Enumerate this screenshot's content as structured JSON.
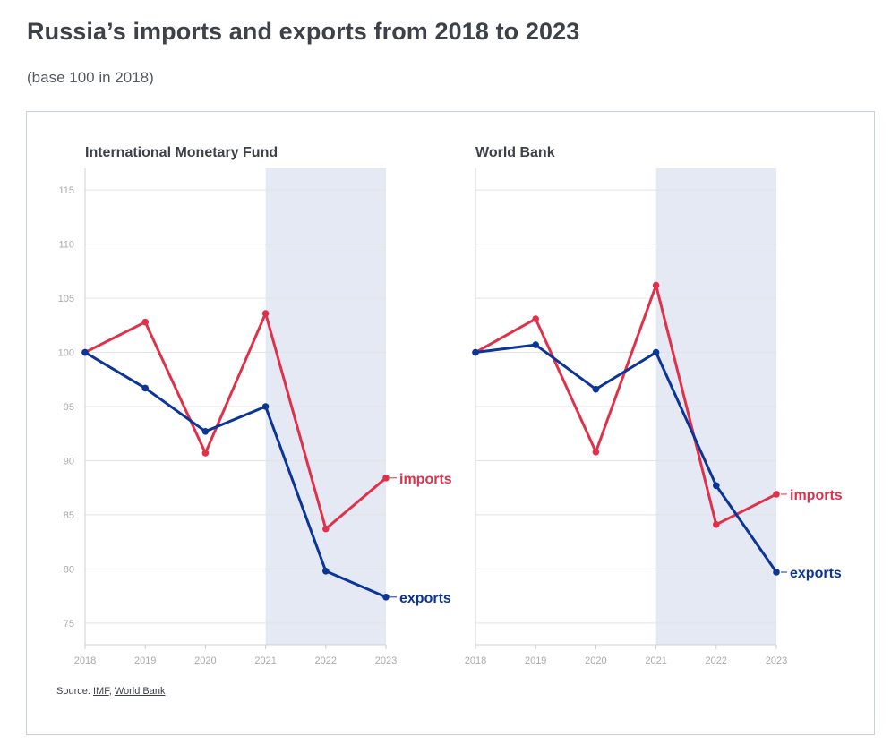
{
  "title": "Russia’s imports and exports from 2018 to 2023",
  "subtitle": "(base 100 in 2018)",
  "source": {
    "prefix": "Source: ",
    "links": [
      "IMF",
      "World Bank"
    ],
    "separator": ", "
  },
  "colors": {
    "imports": "#e0314b",
    "exports": "#0b3596",
    "shade": "#e4e9f4",
    "grid": "#e3e3e3",
    "tick": "#aaaaaa",
    "text": "#3d4148"
  },
  "chart_data": [
    {
      "type": "line",
      "title": "International Monetary Fund",
      "x": [
        "2018",
        "2019",
        "2020",
        "2021",
        "2022",
        "2023"
      ],
      "yticks": [
        75,
        80,
        85,
        90,
        95,
        100,
        105,
        110,
        115
      ],
      "ylim": [
        73,
        117
      ],
      "shaded_range": [
        "2021",
        "2023"
      ],
      "grid": true,
      "series": [
        {
          "name": "imports",
          "values": [
            100,
            102.8,
            90.7,
            103.6,
            83.7,
            88.4
          ]
        },
        {
          "name": "exports",
          "values": [
            100,
            96.7,
            92.7,
            95.0,
            79.8,
            77.4
          ]
        }
      ]
    },
    {
      "type": "line",
      "title": "World Bank",
      "x": [
        "2018",
        "2019",
        "2020",
        "2021",
        "2022",
        "2023"
      ],
      "yticks": [
        75,
        80,
        85,
        90,
        95,
        100,
        105,
        110,
        115
      ],
      "ylim": [
        73,
        117
      ],
      "shaded_range": [
        "2021",
        "2023"
      ],
      "grid": true,
      "series": [
        {
          "name": "imports",
          "values": [
            100,
            103.1,
            90.8,
            106.2,
            84.1,
            86.9
          ]
        },
        {
          "name": "exports",
          "values": [
            100,
            100.7,
            96.6,
            100.0,
            87.7,
            79.7
          ]
        }
      ]
    }
  ]
}
